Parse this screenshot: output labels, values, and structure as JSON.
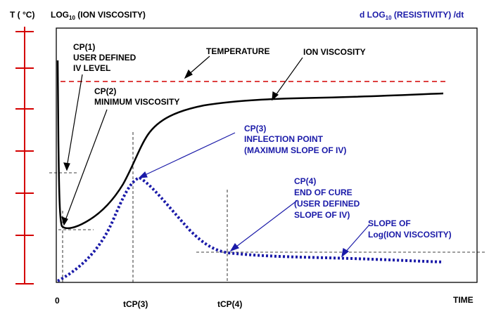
{
  "axes": {
    "temperature_label": "T ( ",
    "temperature_unit": "°C)",
    "left_label_prefix": "LOG",
    "left_label_sub": "10",
    "left_label_suffix": " (ION VISCOSITY)",
    "right_label_prefix": "d LOG",
    "right_label_sub": "10",
    "right_label_suffix": " (RESISTIVITY) /dt",
    "x_label": "TIME",
    "origin_label": "0",
    "tcp3_main": "t",
    "tcp3_sub": "CP(3)",
    "tcp4_main": "t",
    "tcp4_sub": "CP(4)"
  },
  "annotations": {
    "cp1": [
      "CP(1)",
      "USER DEFINED",
      "IV LEVEL"
    ],
    "temperature": "TEMPERATURE",
    "ion_viscosity": "ION VISCOSITY",
    "cp2": [
      "CP(2)",
      "MINIMUM VISCOSITY"
    ],
    "cp3": [
      "CP(3)",
      "INFLECTION POINT",
      "(MAXIMUM SLOPE OF IV)"
    ],
    "cp4": [
      "CP(4)",
      "END OF CURE",
      "(USER DEFINED",
      "SLOPE OF IV)"
    ],
    "slope": [
      "SLOPE OF",
      "Log(ION VISCOSITY)"
    ]
  },
  "colors": {
    "temperature_axis": "#d40000",
    "temperature_line": "#d40000",
    "ion_viscosity_curve": "#000000",
    "slope_curve": "#1a1aa8",
    "blue_text": "#1a1aa8"
  }
}
